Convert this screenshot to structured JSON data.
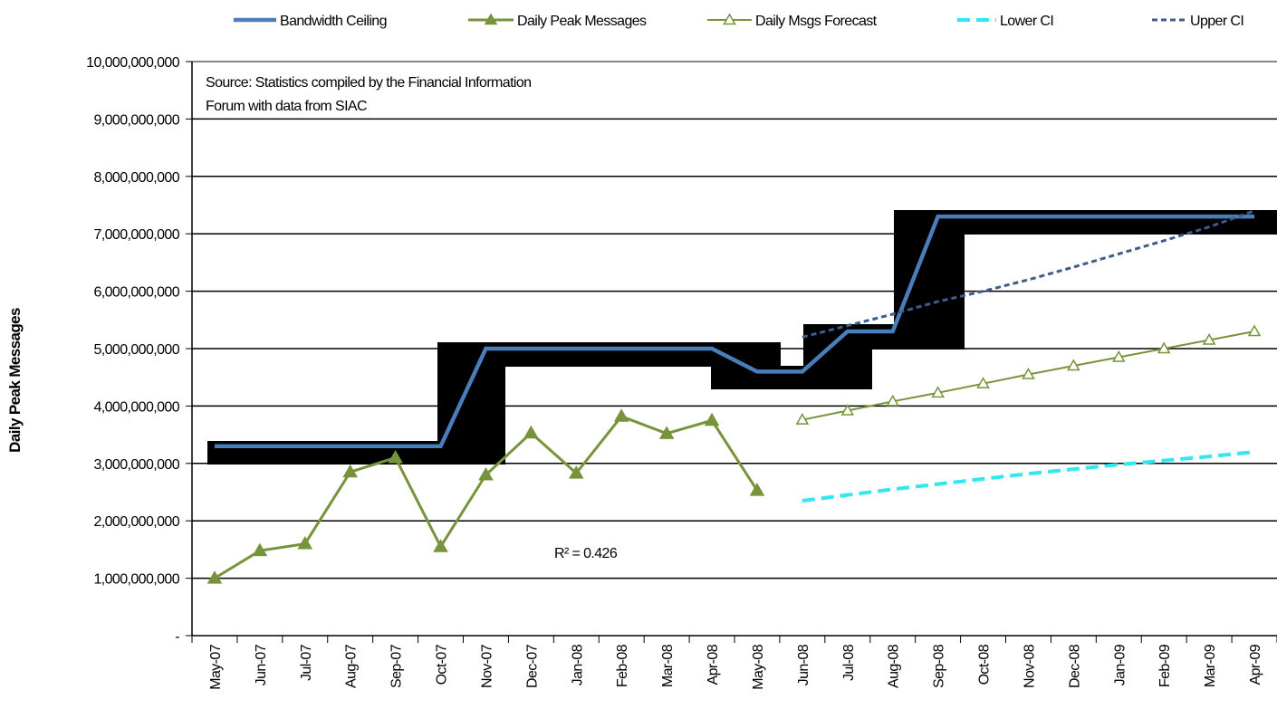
{
  "chart_data": {
    "type": "line",
    "y_label": "Daily Peak Messages",
    "annotations": [
      "Source: Statistics compiled by the Financial Information",
      "Forum with data from SIAC",
      "R² = 0.426"
    ],
    "categories": [
      "May-07",
      "Jun-07",
      "Jul-07",
      "Aug-07",
      "Sep-07",
      "Oct-07",
      "Nov-07",
      "Dec-07",
      "Jan-08",
      "Feb-08",
      "Mar-08",
      "Apr-08",
      "May-08",
      "Jun-08",
      "Jul-08",
      "Aug-08",
      "Sep-08",
      "Oct-08",
      "Nov-08",
      "Dec-08",
      "Jan-09",
      "Feb-09",
      "Mar-09",
      "Apr-09"
    ],
    "ylim": [
      0,
      10000000000
    ],
    "yticks": [
      {
        "value": 0,
        "label": "-"
      },
      {
        "value": 1000000000,
        "label": "1,000,000,000"
      },
      {
        "value": 2000000000,
        "label": "2,000,000,000"
      },
      {
        "value": 3000000000,
        "label": "3,000,000,000"
      },
      {
        "value": 4000000000,
        "label": "4,000,000,000"
      },
      {
        "value": 5000000000,
        "label": "5,000,000,000"
      },
      {
        "value": 6000000000,
        "label": "6,000,000,000"
      },
      {
        "value": 7000000000,
        "label": "7,000,000,000"
      },
      {
        "value": 8000000000,
        "label": "8,000,000,000"
      },
      {
        "value": 9000000000,
        "label": "9,000,000,000"
      },
      {
        "value": 10000000000,
        "label": "10,000,000,000"
      }
    ],
    "grid": true,
    "legend": "top",
    "series": [
      {
        "name": "Bandwidth Ceiling",
        "color": "#4a7ebb",
        "values": [
          3300000000,
          3300000000,
          3300000000,
          3300000000,
          3300000000,
          3300000000,
          5000000000,
          5000000000,
          5000000000,
          5000000000,
          5000000000,
          5000000000,
          4600000000,
          4600000000,
          5300000000,
          5300000000,
          7300000000,
          7300000000,
          7300000000,
          7300000000,
          7300000000,
          7300000000,
          7300000000,
          7300000000
        ]
      },
      {
        "name": "Daily Peak Messages",
        "color": "#77933c",
        "values": [
          1000000000,
          1480000000,
          1600000000,
          2850000000,
          3100000000,
          1550000000,
          2800000000,
          3530000000,
          2830000000,
          3820000000,
          3520000000,
          3750000000,
          2530000000,
          null,
          null,
          null,
          null,
          null,
          null,
          null,
          null,
          null,
          null,
          null
        ]
      },
      {
        "name": "Daily Msgs Forecast",
        "color": "#77933c",
        "values": [
          null,
          null,
          null,
          null,
          null,
          null,
          null,
          null,
          null,
          null,
          null,
          null,
          null,
          3760000000,
          3920000000,
          4080000000,
          4230000000,
          4390000000,
          4550000000,
          4700000000,
          4850000000,
          5000000000,
          5150000000,
          5300000000
        ]
      },
      {
        "name": "Lower CI",
        "color": "#33e6f0",
        "values": [
          null,
          null,
          null,
          null,
          null,
          null,
          null,
          null,
          null,
          null,
          null,
          null,
          null,
          2350000000,
          2450000000,
          2550000000,
          2640000000,
          2730000000,
          2820000000,
          2900000000,
          2980000000,
          3050000000,
          3120000000,
          3200000000
        ]
      },
      {
        "name": "Upper CI",
        "color": "#3b5e8c",
        "values": [
          null,
          null,
          null,
          null,
          null,
          null,
          null,
          null,
          null,
          null,
          null,
          null,
          null,
          5200000000,
          5400000000,
          5600000000,
          5820000000,
          6000000000,
          6200000000,
          6420000000,
          6650000000,
          6880000000,
          7120000000,
          7400000000
        ]
      }
    ]
  }
}
